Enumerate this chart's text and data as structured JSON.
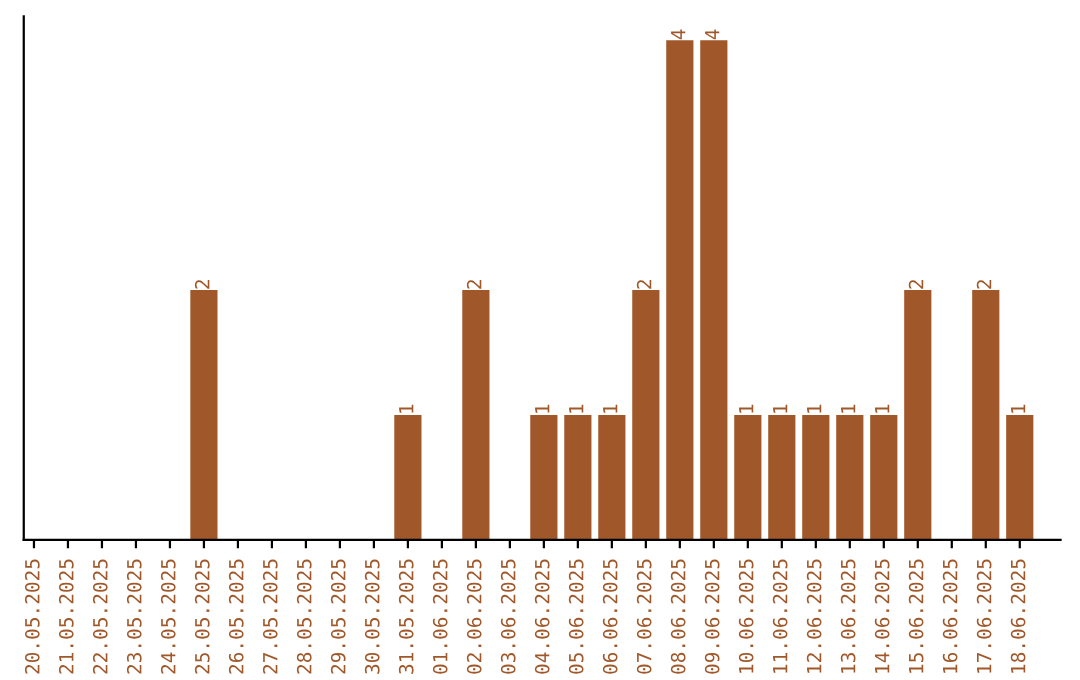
{
  "chart_data": {
    "type": "bar",
    "categories": [
      "20.05.2025",
      "21.05.2025",
      "22.05.2025",
      "23.05.2025",
      "24.05.2025",
      "25.05.2025",
      "26.05.2025",
      "27.05.2025",
      "28.05.2025",
      "29.05.2025",
      "30.05.2025",
      "31.05.2025",
      "01.06.2025",
      "02.06.2025",
      "03.06.2025",
      "04.06.2025",
      "05.06.2025",
      "06.06.2025",
      "07.06.2025",
      "08.06.2025",
      "09.06.2025",
      "10.06.2025",
      "11.06.2025",
      "12.06.2025",
      "13.06.2025",
      "14.06.2025",
      "15.06.2025",
      "16.06.2025",
      "17.06.2025",
      "18.06.2025"
    ],
    "values": [
      0,
      0,
      0,
      0,
      0,
      2,
      0,
      0,
      0,
      0,
      0,
      1,
      0,
      2,
      0,
      1,
      1,
      1,
      2,
      4,
      4,
      1,
      1,
      1,
      1,
      1,
      2,
      0,
      2,
      1
    ],
    "value_labels": [
      null,
      null,
      null,
      null,
      null,
      "2",
      null,
      null,
      null,
      null,
      null,
      "1",
      null,
      "2",
      null,
      "1",
      "1",
      "1",
      "2",
      "4",
      "4",
      "1",
      "1",
      "1",
      "1",
      "1",
      "2",
      null,
      "2",
      "1"
    ],
    "color": "#a0582a",
    "grid": false,
    "tick_labels": "x"
  }
}
